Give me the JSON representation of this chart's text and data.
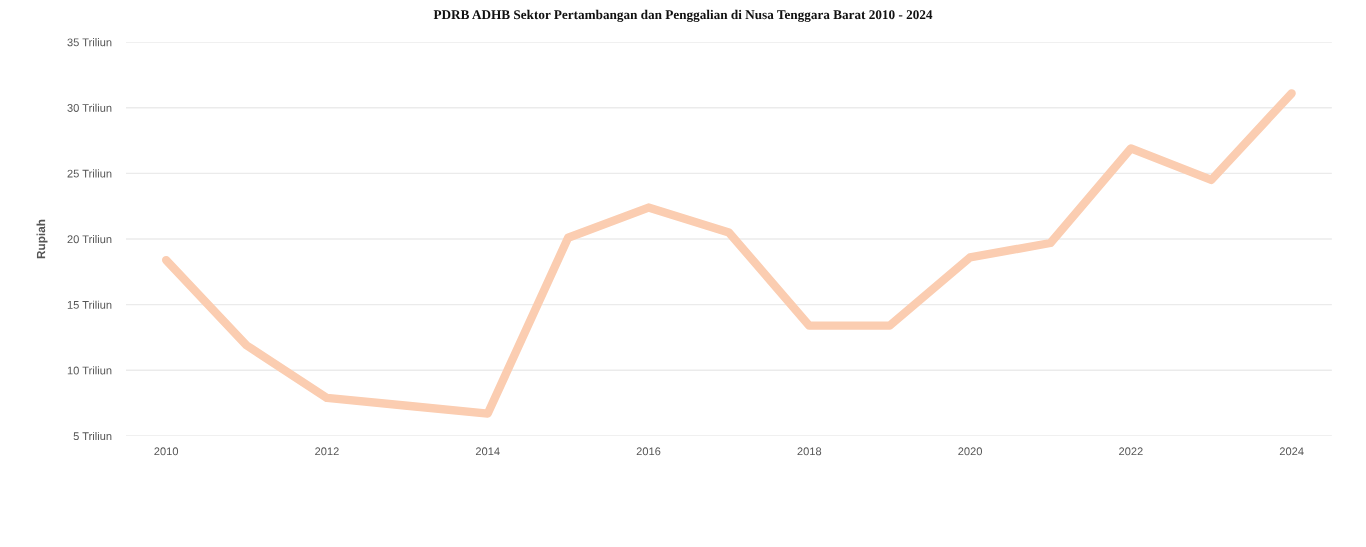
{
  "chart_data": {
    "type": "line",
    "title": "PDRB ADHB Sektor Pertambangan dan Penggalian di Nusa Tenggara Barat 2010 - 2024",
    "ylabel": "Rupiah",
    "categories": [
      "2010",
      null,
      "2012",
      null,
      "2014",
      null,
      "2016",
      null,
      "2018",
      null,
      "2020",
      null,
      "2022",
      null,
      "2024"
    ],
    "series": [
      {
        "color": "#fbcdb1",
        "values": [
          18.4,
          11.9,
          7.9,
          7.3,
          6.7,
          20.1,
          22.4,
          20.5,
          13.4,
          13.4,
          18.6,
          19.7,
          26.9,
          24.5,
          31.1
        ]
      }
    ],
    "ylim": [
      5,
      35
    ],
    "yticks": [
      {
        "value": 5,
        "label": "5 Triliun"
      },
      {
        "value": 10,
        "label": "10 Triliun"
      },
      {
        "value": 15,
        "label": "15 Triliun"
      },
      {
        "value": 20,
        "label": "20 Triliun"
      },
      {
        "value": 25,
        "label": "25 Triliun"
      },
      {
        "value": 30,
        "label": "30 Triliun"
      },
      {
        "value": 35,
        "label": "35 Triliun"
      }
    ],
    "grid": "y",
    "marker": "none",
    "line_style": "solid"
  }
}
